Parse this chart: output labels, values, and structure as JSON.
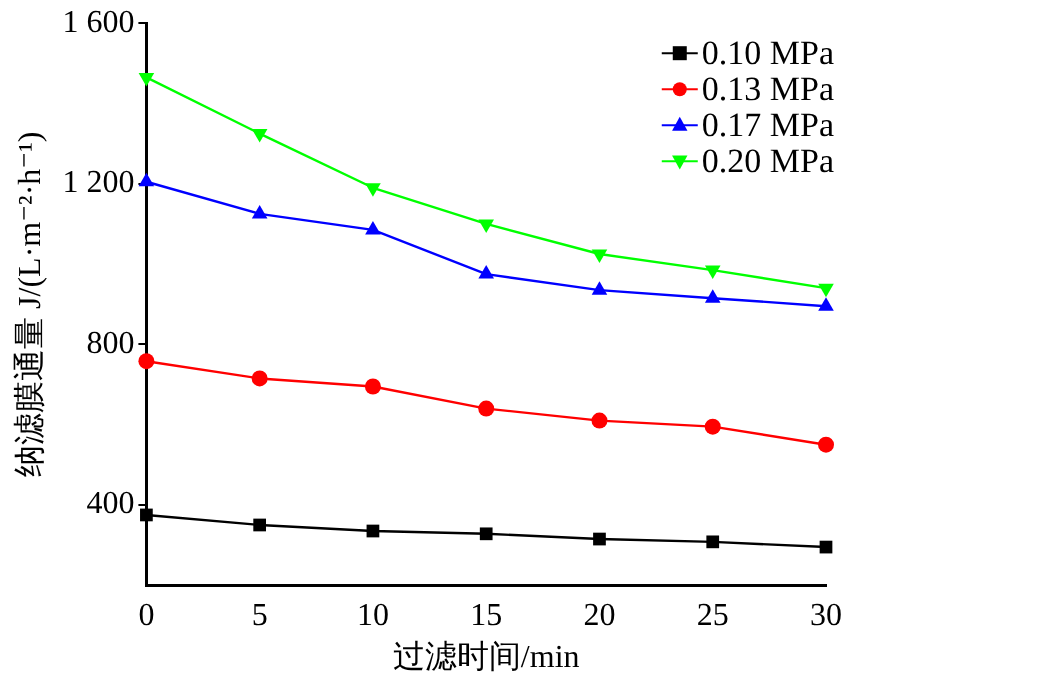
{
  "chart_data": {
    "type": "line",
    "xlabel": "过滤时间/min",
    "ylabel": "纳滤膜通量 J/(L·m⁻²·h⁻¹)",
    "x": [
      0,
      5,
      10,
      15,
      20,
      25,
      30
    ],
    "series": [
      {
        "name": "0.10 MPa",
        "color": "#000000",
        "marker": "square",
        "values": [
          375,
          350,
          335,
          328,
          315,
          308,
          295
        ]
      },
      {
        "name": "0.13 MPa",
        "color": "#ff0000",
        "marker": "circle",
        "values": [
          758,
          715,
          695,
          640,
          610,
          595,
          550
        ]
      },
      {
        "name": "0.17 MPa",
        "color": "#0000ff",
        "marker": "triangle",
        "values": [
          1205,
          1125,
          1085,
          975,
          935,
          915,
          895
        ]
      },
      {
        "name": "0.20 MPa",
        "color": "#00ff00",
        "marker": "triangle-down",
        "values": [
          1465,
          1325,
          1190,
          1100,
          1025,
          985,
          940
        ]
      }
    ],
    "xlim": [
      0,
      30
    ],
    "xticks": [
      0,
      5,
      10,
      15,
      20,
      25,
      30
    ],
    "ylim": [
      200,
      1600
    ],
    "yticks": [
      {
        "value": 400,
        "label": "400"
      },
      {
        "value": 800,
        "label": "800"
      },
      {
        "value": 1200,
        "label": "1 200"
      },
      {
        "value": 1600,
        "label": "1 600"
      }
    ],
    "grid": false,
    "legend": "top right",
    "line_style": "solid"
  }
}
